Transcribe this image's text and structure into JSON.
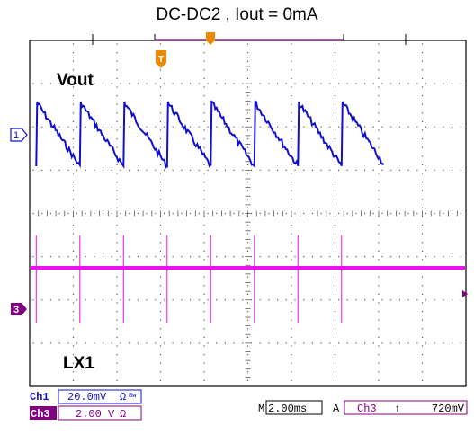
{
  "title": "DC-DC2 , Iout = 0mA",
  "chart_data": {
    "type": "line",
    "title": "DC-DC2 , Iout = 0mA",
    "grid": true,
    "grid_divisions": {
      "horizontal": 10,
      "vertical": 8
    },
    "x_unit_per_div_ms": 2.0,
    "series": [
      {
        "name": "Vout",
        "channel": "Ch1",
        "color": "#1010cc",
        "waveform": "sawtooth",
        "period_ms": 2.0,
        "peak_to_peak_mV": 40,
        "rise_times_ms": [
          0.3,
          2.3,
          4.3,
          6.3,
          8.3,
          10.3,
          12.3,
          14.3
        ]
      },
      {
        "name": "LX1",
        "channel": "Ch3",
        "color": "#ee10ee",
        "waveform": "spikes",
        "period_ms": 2.0,
        "spike_times_ms": [
          0.3,
          2.3,
          4.3,
          6.3,
          8.3,
          10.3,
          12.3,
          14.3
        ]
      }
    ]
  },
  "labels": {
    "vout": "Vout",
    "lx1": "LX1",
    "ch1_marker": "1",
    "ch3_marker": "3",
    "trigger_marker": "T"
  },
  "status": {
    "ch1_label": "Ch1",
    "ch1_scale": "20.0mV",
    "ch1_suffix": "Ω",
    "ch1_bw": "Bw",
    "ch3_label": "Ch3",
    "ch3_scale": "2.00 V",
    "ch3_suffix": "Ω",
    "m_label": "M",
    "timebase": "2.00ms",
    "trig_mode": "A",
    "trig_source": "Ch3",
    "trig_slope": "↑",
    "trig_level": "720mV"
  },
  "colors": {
    "ch1": "#1010cc",
    "ch3": "#ee10ee",
    "ch3_badge_bg": "#800080",
    "trigger": "#ee8800"
  }
}
